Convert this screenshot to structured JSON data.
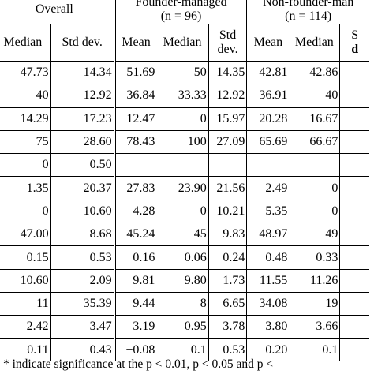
{
  "header": {
    "overall": "Overall",
    "founder": "Founder-managed",
    "founder_n": "(n = 96)",
    "nonfounder": "Non-founder-man",
    "nonfounder_n": "(n = 114)"
  },
  "columns": {
    "overall_median": "Median",
    "overall_std": "Std dev.",
    "f_mean": "Mean",
    "f_median": "Median",
    "f_std_1": "Std",
    "f_std_2": "dev.",
    "nf_mean": "Mean",
    "nf_median": "Median",
    "nf_std_1": "S",
    "nf_std_2": "d"
  },
  "rows": [
    [
      "47.73",
      "14.34",
      "51.69",
      "50",
      "14.35",
      "42.81",
      "42.86"
    ],
    [
      "40",
      "12.92",
      "36.84",
      "33.33",
      "12.92",
      "36.91",
      "40"
    ],
    [
      "14.29",
      "17.23",
      "12.47",
      "0",
      "15.97",
      "20.28",
      "16.67"
    ],
    [
      "75",
      "28.60",
      "78.43",
      "100",
      "27.09",
      "65.69",
      "66.67"
    ],
    [
      "0",
      "0.50",
      "",
      "",
      "",
      "",
      ""
    ],
    [
      "1.35",
      "20.37",
      "27.83",
      "23.90",
      "21.56",
      "2.49",
      "0"
    ],
    [
      "0",
      "10.60",
      "4.28",
      "0",
      "10.21",
      "5.35",
      "0"
    ],
    [
      "47.00",
      "8.68",
      "45.24",
      "45",
      "9.83",
      "48.97",
      "49"
    ],
    [
      "0.15",
      "0.53",
      "0.16",
      "0.06",
      "0.24",
      "0.48",
      "0.33"
    ],
    [
      "10.60",
      "2.09",
      "9.81",
      "9.80",
      "1.73",
      "11.55",
      "11.26"
    ],
    [
      "11",
      "35.39",
      "9.44",
      "8",
      "6.65",
      "34.08",
      "19"
    ],
    [
      "2.42",
      "3.47",
      "3.19",
      "0.95",
      "3.78",
      "3.80",
      "3.66"
    ],
    [
      "0.11",
      "0.43",
      "−0.08",
      "0.1",
      "0.53",
      "0.20",
      "0.1"
    ]
  ],
  "footnote": "* indicate significance at the p < 0.01, p < 0.05 and p <"
}
